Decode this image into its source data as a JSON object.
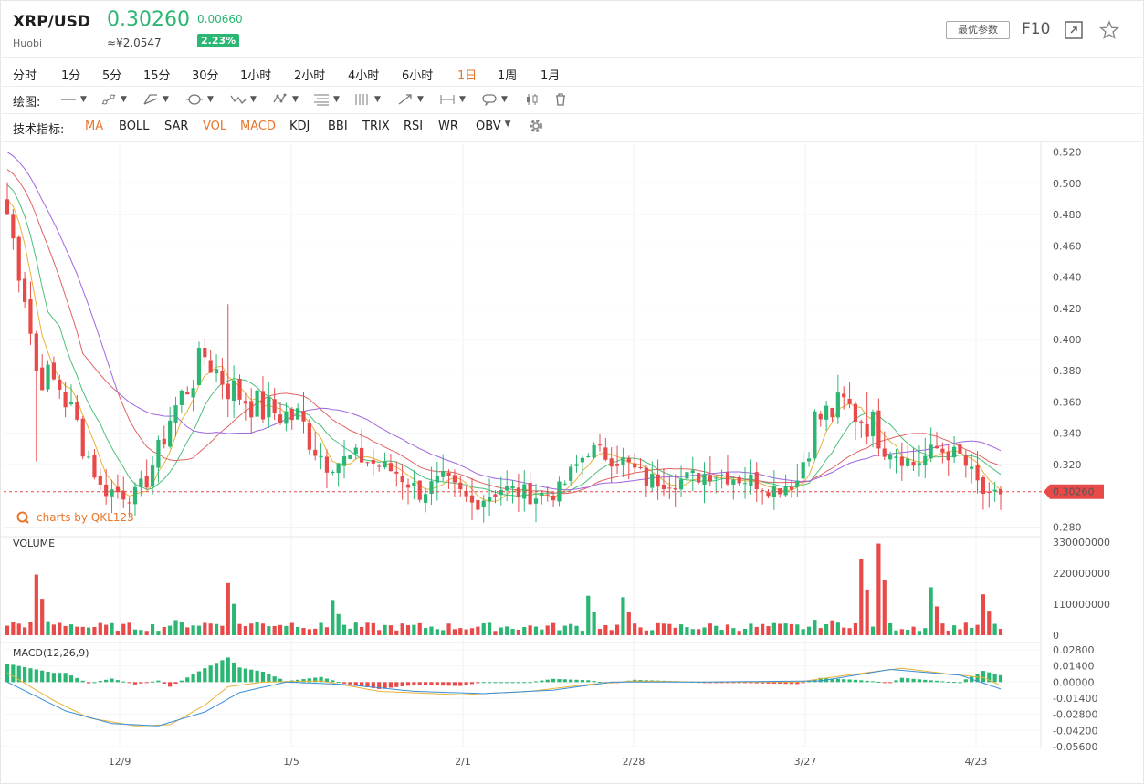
{
  "header": {
    "pair": "XRP/USD",
    "exchange": "Huobi",
    "price": "0.30260",
    "cny": "≈¥2.0547",
    "change": "0.00660",
    "change_pct": "2.23%",
    "optimal_params": "最优参数",
    "f10": "F10",
    "colors": {
      "up": "#2bb673",
      "down": "#e84a4a"
    }
  },
  "timeframes": [
    "分时",
    "1分",
    "5分",
    "15分",
    "30分",
    "1小时",
    "2小时",
    "4小时",
    "6小时",
    "1日",
    "1周",
    "1月"
  ],
  "active_timeframe": "1日",
  "draw_label": "绘图:",
  "indicators": {
    "label": "技术指标:",
    "items": [
      "MA",
      "BOLL",
      "SAR",
      "VOL",
      "MACD",
      "KDJ",
      "BBI",
      "TRIX",
      "RSI",
      "WR",
      "OBV"
    ],
    "active": [
      "MA",
      "VOL",
      "MACD"
    ]
  },
  "watermark": "charts by QKL123",
  "chart_data": [
    {
      "type": "candlestick",
      "price_axis": [
        "0.520",
        "0.500",
        "0.480",
        "0.460",
        "0.440",
        "0.420",
        "0.400",
        "0.380",
        "0.360",
        "0.340",
        "0.320",
        "0.280"
      ],
      "ylim": [
        0.275,
        0.525
      ],
      "last_price_label": "0.30260",
      "last_price": 0.3026,
      "x_ticks": [
        "12/9",
        "1/5",
        "2/1",
        "2/28",
        "3/27",
        "4/23"
      ],
      "anchors": [
        [
          0,
          0.48
        ],
        [
          3,
          0.43
        ],
        [
          5,
          0.38
        ],
        [
          9,
          0.37
        ],
        [
          12,
          0.345
        ],
        [
          16,
          0.305
        ],
        [
          22,
          0.3
        ],
        [
          24,
          0.31
        ],
        [
          28,
          0.35
        ],
        [
          34,
          0.39
        ],
        [
          38,
          0.37
        ],
        [
          44,
          0.355
        ],
        [
          50,
          0.35
        ],
        [
          55,
          0.32
        ],
        [
          60,
          0.325
        ],
        [
          67,
          0.315
        ],
        [
          71,
          0.302
        ],
        [
          75,
          0.31
        ],
        [
          80,
          0.295
        ],
        [
          85,
          0.305
        ],
        [
          91,
          0.3
        ],
        [
          95,
          0.303
        ],
        [
          100,
          0.33
        ],
        [
          106,
          0.322
        ],
        [
          110,
          0.31
        ],
        [
          116,
          0.31
        ],
        [
          121,
          0.315
        ],
        [
          128,
          0.31
        ],
        [
          132,
          0.305
        ],
        [
          136,
          0.31
        ],
        [
          139,
          0.348
        ],
        [
          144,
          0.358
        ],
        [
          149,
          0.345
        ],
        [
          152,
          0.33
        ],
        [
          156,
          0.32
        ],
        [
          160,
          0.33
        ],
        [
          164,
          0.325
        ],
        [
          169,
          0.296
        ],
        [
          171,
          0.302
        ]
      ],
      "ma_colors": [
        "#e8b23a",
        "#4cc07a",
        "#e06464",
        "#a066e0"
      ]
    },
    {
      "type": "bar",
      "title": "VOLUME",
      "y_axis": [
        "330000000",
        "220000000",
        "110000000",
        "0"
      ],
      "ylim": [
        0,
        330000000
      ],
      "spikes": [
        [
          5,
          215000000
        ],
        [
          38,
          185000000
        ],
        [
          56,
          125000000
        ],
        [
          100,
          140000000
        ],
        [
          106,
          135000000
        ],
        [
          147,
          270000000
        ],
        [
          150,
          325000000
        ],
        [
          159,
          170000000
        ],
        [
          168,
          145000000
        ]
      ]
    },
    {
      "type": "bar",
      "title": "MACD(12,26,9)",
      "y_axis": [
        "0.02800",
        "0.01400",
        "0.00000",
        "-0.01400",
        "-0.02800",
        "-0.04200",
        "-0.05600"
      ],
      "ylim": [
        -0.056,
        0.028
      ],
      "dif_anchors": [
        [
          0,
          0.008
        ],
        [
          8,
          -0.016
        ],
        [
          14,
          -0.031
        ],
        [
          22,
          -0.038
        ],
        [
          28,
          -0.037
        ],
        [
          34,
          -0.02
        ],
        [
          38,
          -0.004
        ],
        [
          44,
          0.0
        ],
        [
          54,
          0.001
        ],
        [
          64,
          -0.008
        ],
        [
          78,
          -0.011
        ],
        [
          90,
          -0.008
        ],
        [
          100,
          -0.002
        ],
        [
          108,
          0.001
        ],
        [
          120,
          0.0
        ],
        [
          136,
          0.0
        ],
        [
          146,
          0.007
        ],
        [
          154,
          0.012
        ],
        [
          162,
          0.007
        ],
        [
          168,
          0.004
        ],
        [
          171,
          -0.003
        ]
      ],
      "dea_anchors": [
        [
          0,
          0.0
        ],
        [
          10,
          -0.025
        ],
        [
          18,
          -0.036
        ],
        [
          26,
          -0.038
        ],
        [
          34,
          -0.026
        ],
        [
          40,
          -0.009
        ],
        [
          48,
          0.0
        ],
        [
          58,
          -0.002
        ],
        [
          70,
          -0.008
        ],
        [
          82,
          -0.01
        ],
        [
          94,
          -0.007
        ],
        [
          104,
          0.0
        ],
        [
          118,
          0.0
        ],
        [
          140,
          0.001
        ],
        [
          152,
          0.011
        ],
        [
          164,
          0.006
        ],
        [
          171,
          -0.006
        ]
      ]
    }
  ]
}
